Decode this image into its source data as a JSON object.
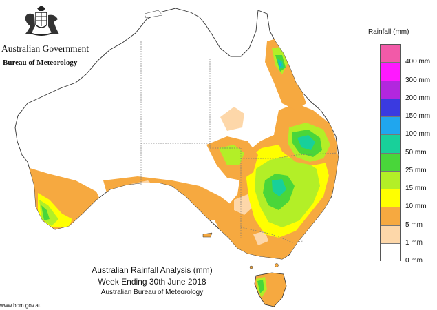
{
  "header": {
    "government": "Australian Government",
    "agency": "Bureau of Meteorology"
  },
  "legend": {
    "title": "Rainfall (mm)",
    "colors": [
      "#f25aa8",
      "#ff19ff",
      "#b227de",
      "#3a3ae0",
      "#20a6ee",
      "#18d09a",
      "#49d63a",
      "#b3ef27",
      "#ffff00",
      "#f6a940",
      "#fdd7a9",
      "#ffffff"
    ],
    "labels": [
      "400 mm",
      "300 mm",
      "200 mm",
      "150 mm",
      "100 mm",
      "50 mm",
      "25 mm",
      "15 mm",
      "10 mm",
      "5 mm",
      "1 mm",
      "0 mm"
    ]
  },
  "caption": {
    "line1": "Australian Rainfall Analysis (mm)",
    "line2": "Week Ending 30th June 2018",
    "line3": "Australian Bureau of Meteorology"
  },
  "footer": {
    "url": "www.bom.gov.au"
  }
}
